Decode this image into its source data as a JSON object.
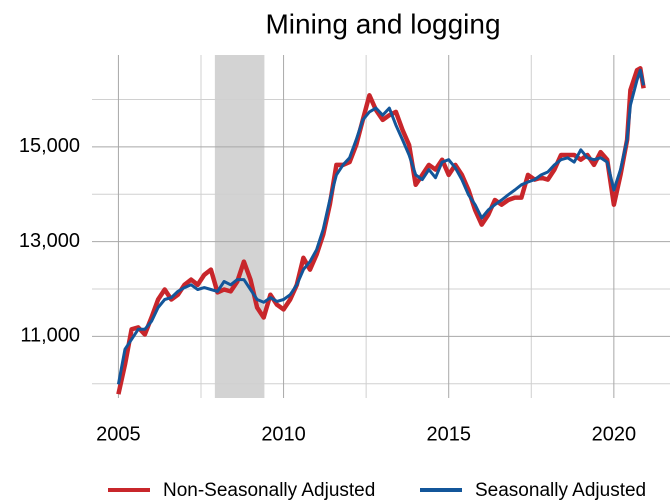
{
  "chart_data": {
    "type": "line",
    "title": "Mining and logging",
    "x": [
      2005.0,
      2005.2,
      2005.4,
      2005.6,
      2005.8,
      2006.0,
      2006.2,
      2006.4,
      2006.6,
      2006.8,
      2007.0,
      2007.2,
      2007.4,
      2007.6,
      2007.8,
      2008.0,
      2008.2,
      2008.4,
      2008.6,
      2008.8,
      2009.0,
      2009.2,
      2009.4,
      2009.6,
      2009.8,
      2010.0,
      2010.2,
      2010.4,
      2010.6,
      2010.8,
      2011.0,
      2011.2,
      2011.4,
      2011.6,
      2011.8,
      2012.0,
      2012.2,
      2012.4,
      2012.6,
      2012.8,
      2013.0,
      2013.2,
      2013.4,
      2013.6,
      2013.8,
      2014.0,
      2014.2,
      2014.4,
      2014.6,
      2014.8,
      2015.0,
      2015.2,
      2015.4,
      2015.6,
      2015.8,
      2016.0,
      2016.2,
      2016.4,
      2016.6,
      2016.8,
      2017.0,
      2017.2,
      2017.4,
      2017.6,
      2017.8,
      2018.0,
      2018.2,
      2018.4,
      2018.6,
      2018.8,
      2019.0,
      2019.2,
      2019.4,
      2019.6,
      2019.8,
      2020.0,
      2020.2,
      2020.4,
      2020.5,
      2020.7,
      2020.8,
      2020.9
    ],
    "series": [
      {
        "name": "Non-Seasonally Adjusted",
        "color": "#c8262b",
        "values": [
          9780,
          10410,
          11150,
          11190,
          11040,
          11400,
          11780,
          11990,
          11780,
          11880,
          12090,
          12200,
          12090,
          12300,
          12410,
          11930,
          11990,
          11950,
          12160,
          12580,
          12200,
          11610,
          11400,
          11880,
          11670,
          11570,
          11780,
          12090,
          12660,
          12410,
          12730,
          13150,
          13780,
          14620,
          14620,
          14680,
          15040,
          15570,
          16090,
          15780,
          15570,
          15670,
          15740,
          15360,
          15040,
          14200,
          14410,
          14620,
          14520,
          14730,
          14410,
          14620,
          14410,
          14090,
          13670,
          13360,
          13570,
          13880,
          13780,
          13880,
          13930,
          13930,
          14410,
          14310,
          14350,
          14310,
          14520,
          14830,
          14830,
          14830,
          14730,
          14830,
          14620,
          14890,
          14730,
          13780,
          14410,
          15150,
          16200,
          16620,
          16660,
          16240
        ]
      },
      {
        "name": "Seasonally Adjusted",
        "color": "#13569a",
        "values": [
          9990,
          10730,
          10940,
          11150,
          11150,
          11320,
          11610,
          11780,
          11820,
          11950,
          12030,
          12090,
          11990,
          12030,
          11990,
          11950,
          12160,
          12090,
          12200,
          12200,
          11990,
          11780,
          11720,
          11820,
          11740,
          11780,
          11880,
          12090,
          12410,
          12580,
          12830,
          13260,
          13880,
          14410,
          14620,
          14770,
          15150,
          15570,
          15740,
          15820,
          15670,
          15820,
          15460,
          15150,
          14830,
          14410,
          14310,
          14520,
          14350,
          14680,
          14730,
          14560,
          14310,
          13990,
          13780,
          13500,
          13670,
          13780,
          13880,
          13990,
          14090,
          14200,
          14260,
          14310,
          14410,
          14470,
          14620,
          14730,
          14770,
          14680,
          14940,
          14770,
          14730,
          14770,
          14680,
          14090,
          14520,
          15150,
          15880,
          16410,
          16620,
          16300
        ]
      }
    ],
    "shaded_regions": [
      {
        "x0": 2007.92,
        "x1": 2009.42
      }
    ],
    "xlim": [
      2004.2,
      2021.7
    ],
    "ylim": [
      9700,
      16940
    ],
    "xticks": [
      2005,
      2010,
      2015,
      2020
    ],
    "xminor_ticks": [
      2007.5,
      2012.5,
      2017.5
    ],
    "yticks": [
      {
        "value": 11000,
        "label": "11,000"
      },
      {
        "value": 13000,
        "label": "13,000"
      },
      {
        "value": 15000,
        "label": "15,000"
      }
    ],
    "yminor_ticks": [
      10000,
      12000,
      14000,
      16000
    ],
    "grid": true,
    "legend": "bottom"
  }
}
